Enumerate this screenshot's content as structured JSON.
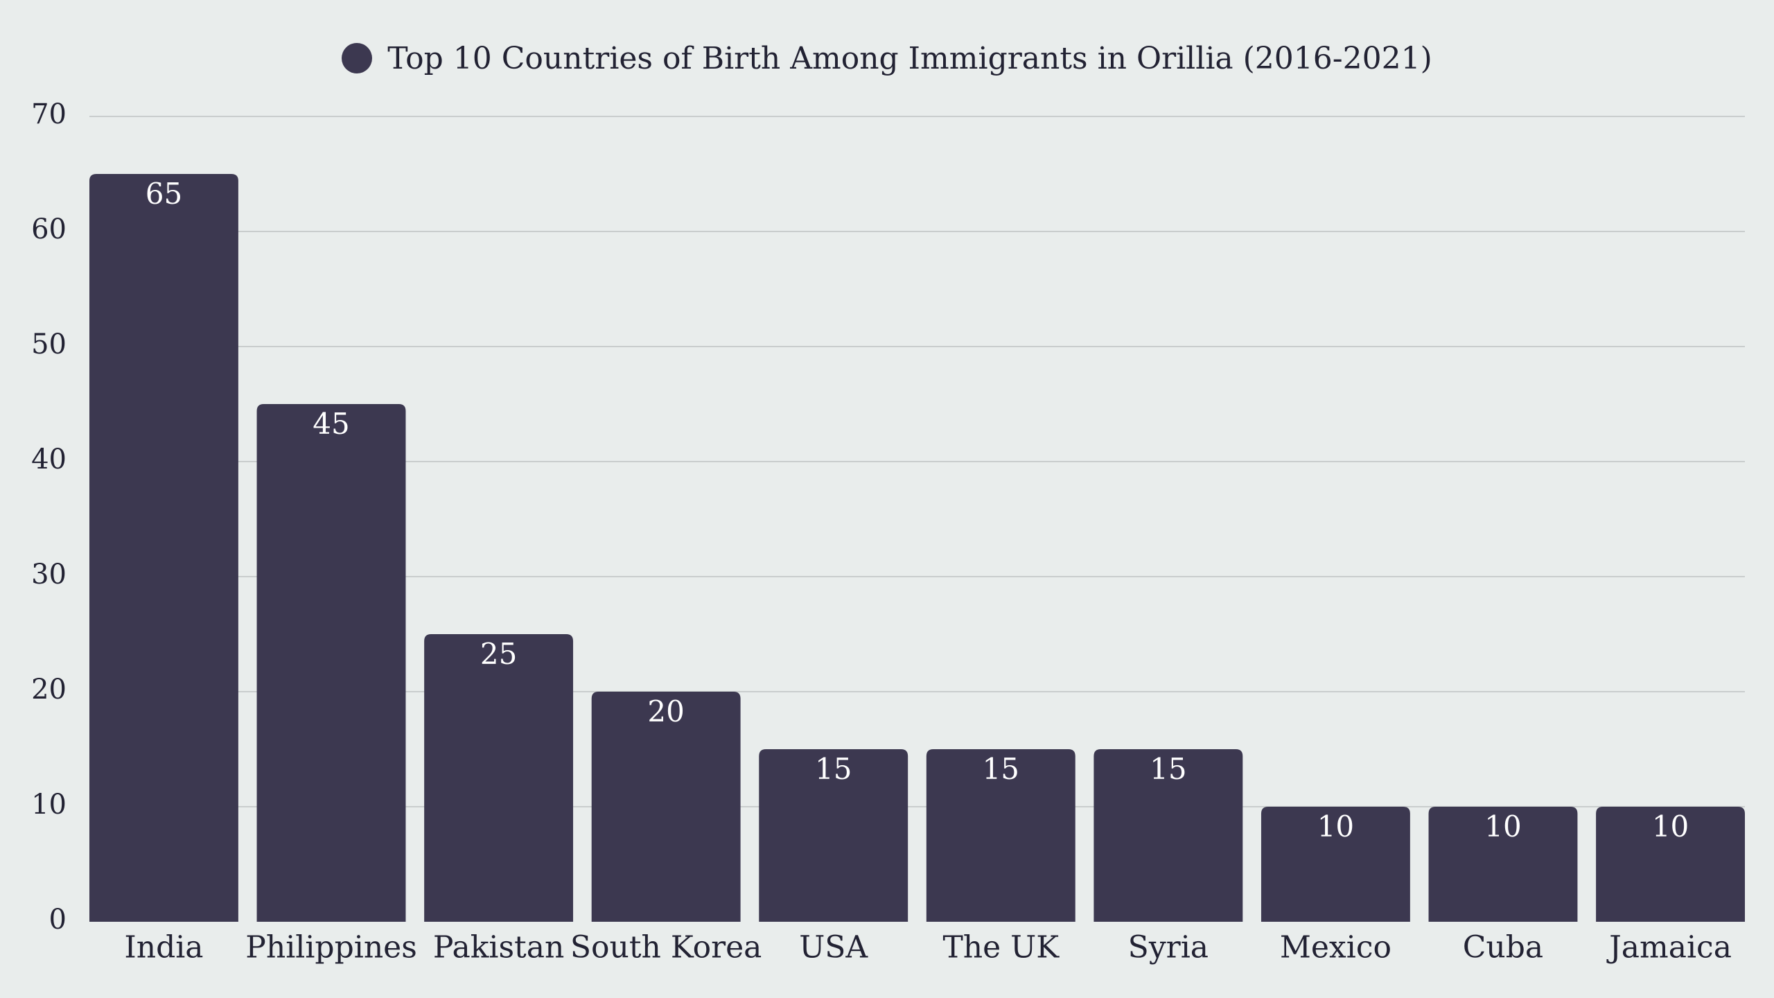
{
  "chart_data": {
    "type": "bar",
    "title": "",
    "legend": {
      "position": "top-center",
      "entries": [
        "Top 10 Countries of Birth Among Immigrants in Orillia (2016-2021)"
      ]
    },
    "xlabel": "",
    "ylabel": "",
    "ylim": [
      0,
      70
    ],
    "y_ticks": [
      0,
      10,
      20,
      30,
      40,
      50,
      60,
      70
    ],
    "grid": true,
    "categories": [
      "India",
      "Philippines",
      "Pakistan",
      "South Korea",
      "USA",
      "The UK",
      "Syria",
      "Mexico",
      "Cuba",
      "Jamaica"
    ],
    "series": [
      {
        "name": "Top 10 Countries of Birth Among Immigrants in Orillia (2016-2021)",
        "values": [
          65,
          45,
          25,
          20,
          15,
          15,
          15,
          10,
          10,
          10
        ],
        "color": "#3c3850"
      }
    ],
    "data_labels": true,
    "background_color": "#e9edec"
  }
}
